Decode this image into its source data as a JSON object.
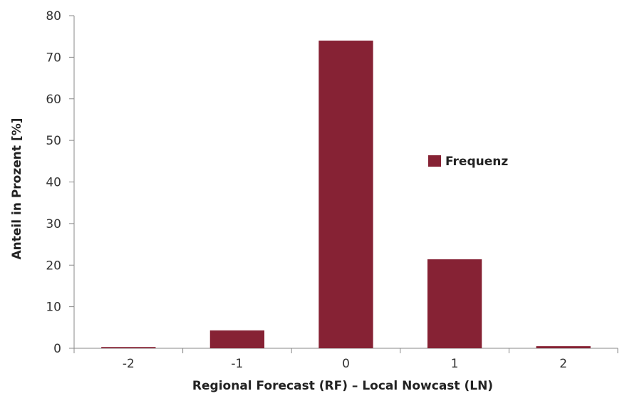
{
  "chart_data": {
    "type": "bar",
    "categories": [
      "-2",
      "-1",
      "0",
      "1",
      "2"
    ],
    "series": [
      {
        "name": "Frequenz",
        "values": [
          0.3,
          4.3,
          74.0,
          21.4,
          0.5
        ]
      }
    ],
    "title": "",
    "xlabel": "Regional Forecast (RF) – Local Nowcast (LN)",
    "ylabel": "Anteil in Prozent [%]",
    "ylim": [
      0,
      80
    ],
    "yticks": [
      "0",
      "10",
      "20",
      "30",
      "40",
      "50",
      "60",
      "70",
      "80"
    ],
    "grid": false,
    "legend": "right",
    "colors": {
      "bar": "#862234",
      "axis": "#888888"
    }
  }
}
